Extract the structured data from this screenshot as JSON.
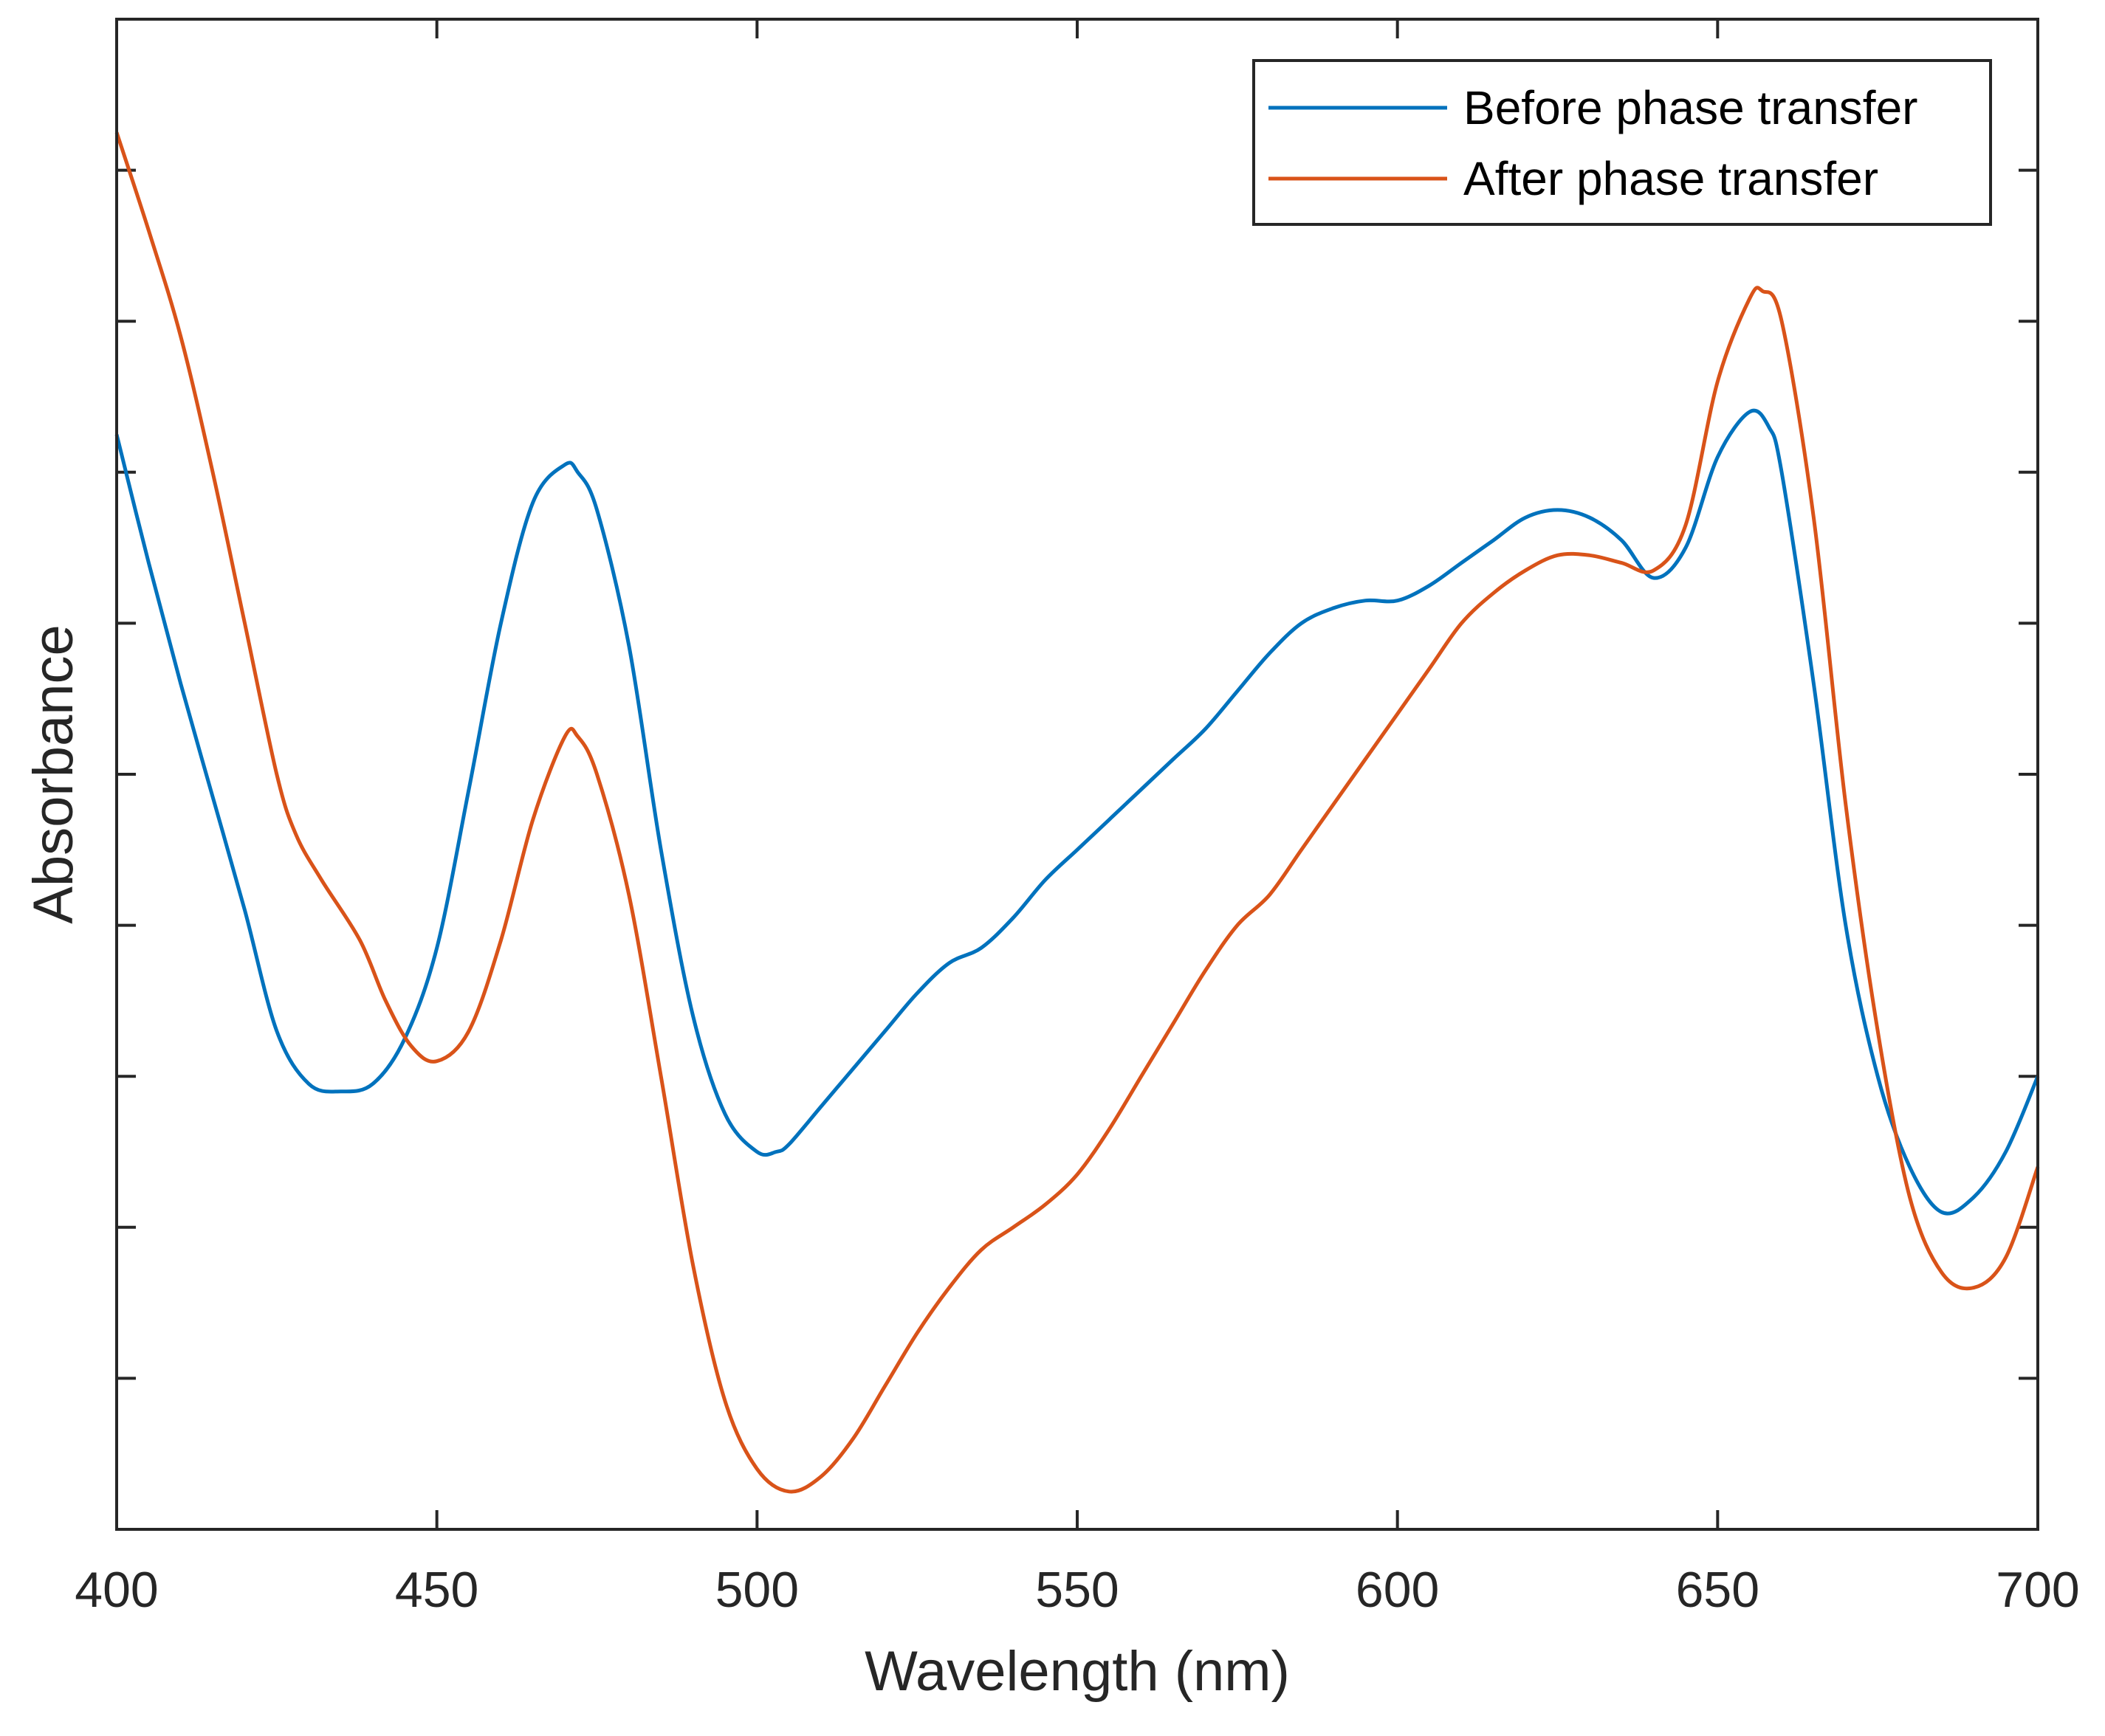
{
  "chart_data": {
    "type": "line",
    "title": "",
    "xlabel": "Wavelength (nm)",
    "ylabel": "Absorbance",
    "xlim": [
      400,
      700
    ],
    "ylim": [
      0,
      1
    ],
    "xticks": [
      400,
      450,
      500,
      550,
      600,
      650,
      700
    ],
    "yticks": [
      0.1,
      0.2,
      0.3,
      0.4,
      0.5,
      0.6,
      0.7,
      0.8,
      0.9
    ],
    "ytick_labels_visible": false,
    "grid": false,
    "legend_position": "top-right",
    "series": [
      {
        "name": "Before phase transfer",
        "color": "#0072bd",
        "x": [
          400,
          405,
          410,
          415,
          420,
          425,
          430,
          435,
          440,
          445,
          450,
          455,
          460,
          465,
          470,
          472,
          475,
          480,
          485,
          490,
          495,
          500,
          503,
          505,
          510,
          515,
          520,
          525,
          530,
          535,
          540,
          545,
          550,
          555,
          560,
          565,
          570,
          575,
          580,
          585,
          590,
          595,
          600,
          605,
          610,
          615,
          620,
          625,
          630,
          635,
          640,
          645,
          650,
          655,
          658,
          660,
          665,
          670,
          675,
          680,
          685,
          690,
          695,
          700
        ],
        "y": [
          0.725,
          0.64,
          0.56,
          0.485,
          0.41,
          0.33,
          0.295,
          0.29,
          0.295,
          0.325,
          0.385,
          0.49,
          0.6,
          0.68,
          0.705,
          0.7,
          0.675,
          0.585,
          0.45,
          0.34,
          0.275,
          0.25,
          0.25,
          0.255,
          0.28,
          0.305,
          0.33,
          0.355,
          0.375,
          0.385,
          0.405,
          0.43,
          0.45,
          0.47,
          0.49,
          0.51,
          0.53,
          0.555,
          0.58,
          0.6,
          0.61,
          0.615,
          0.615,
          0.625,
          0.64,
          0.655,
          0.67,
          0.675,
          0.67,
          0.655,
          0.63,
          0.65,
          0.71,
          0.74,
          0.73,
          0.7,
          0.56,
          0.4,
          0.3,
          0.24,
          0.21,
          0.22,
          0.25,
          0.3
        ]
      },
      {
        "name": "After phase transfer",
        "color": "#d95319",
        "x": [
          400,
          405,
          410,
          415,
          420,
          425,
          428,
          432,
          438,
          442,
          446,
          450,
          455,
          460,
          465,
          470,
          472,
          475,
          480,
          485,
          490,
          495,
          500,
          505,
          510,
          515,
          520,
          525,
          530,
          535,
          540,
          545,
          550,
          555,
          560,
          565,
          570,
          575,
          580,
          585,
          590,
          595,
          600,
          605,
          610,
          615,
          620,
          625,
          630,
          635,
          640,
          645,
          650,
          655,
          657,
          660,
          665,
          670,
          675,
          680,
          685,
          690,
          695,
          700
        ],
        "y": [
          0.925,
          0.86,
          0.79,
          0.7,
          0.6,
          0.5,
          0.46,
          0.43,
          0.39,
          0.35,
          0.32,
          0.31,
          0.33,
          0.39,
          0.47,
          0.525,
          0.525,
          0.5,
          0.42,
          0.3,
          0.175,
          0.085,
          0.04,
          0.025,
          0.035,
          0.06,
          0.095,
          0.13,
          0.16,
          0.185,
          0.2,
          0.215,
          0.235,
          0.265,
          0.3,
          0.335,
          0.37,
          0.4,
          0.42,
          0.45,
          0.48,
          0.51,
          0.54,
          0.57,
          0.6,
          0.62,
          0.635,
          0.645,
          0.645,
          0.64,
          0.635,
          0.665,
          0.76,
          0.815,
          0.82,
          0.8,
          0.67,
          0.48,
          0.33,
          0.22,
          0.17,
          0.16,
          0.18,
          0.24
        ]
      }
    ]
  }
}
